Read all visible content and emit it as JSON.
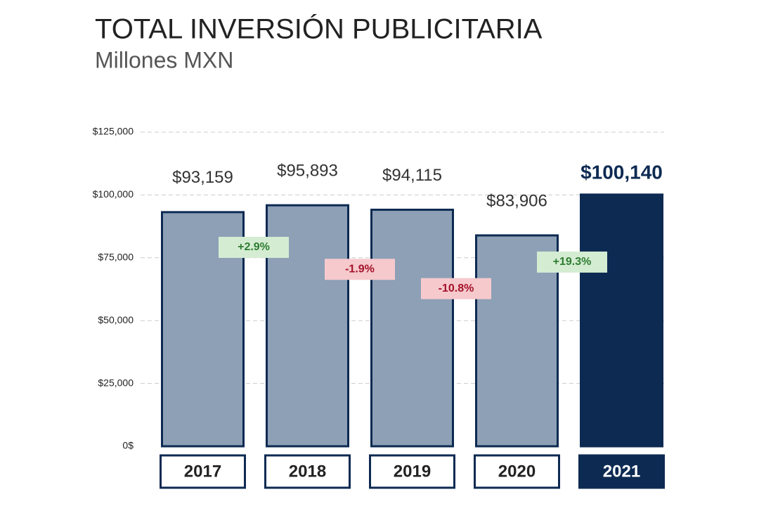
{
  "chart_data": {
    "type": "bar",
    "title": "TOTAL INVERSIÓN PUBLICITARIA",
    "subtitle": "Millones MXN",
    "categories": [
      "2017",
      "2018",
      "2019",
      "2020",
      "2021"
    ],
    "values": [
      93159,
      95893,
      94115,
      83906,
      100140
    ],
    "value_labels": [
      "$93,159",
      "$95,893",
      "$94,115",
      "$83,906",
      "$100,140"
    ],
    "color": "#8da0b6",
    "edge_color": "#0d2a52",
    "highlight": "2021",
    "highlight_color": "#0d2a52",
    "ylim": [
      0,
      125000
    ],
    "yticks": [
      {
        "value": 0,
        "label": "0$"
      },
      {
        "value": 25000,
        "label": "$25,000"
      },
      {
        "value": 50000,
        "label": "$50,000"
      },
      {
        "value": 75000,
        "label": "$75,000"
      },
      {
        "value": 100000,
        "label": "$100,000"
      },
      {
        "value": 125000,
        "label": "$125,000"
      }
    ],
    "grid": true,
    "annotations": [
      {
        "value": 2.9,
        "label": "+2.9%"
      },
      {
        "value": -1.9,
        "label": "-1.9%"
      },
      {
        "value": -10.8,
        "label": "-10.8%"
      },
      {
        "value": 19.3,
        "label": "+19.3%"
      }
    ],
    "positive_color": "#d4ecd2",
    "positive_text_color": "#2e7d32",
    "negative_color": "#f6c9cc",
    "negative_text_color": "#a3122a"
  }
}
